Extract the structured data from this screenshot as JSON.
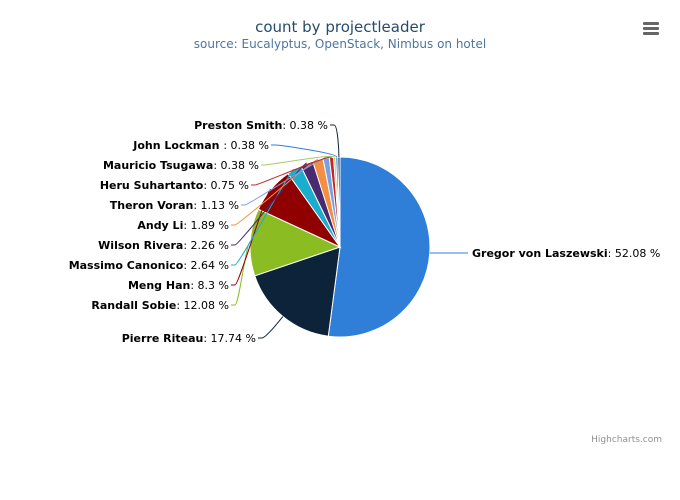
{
  "chart_data": {
    "type": "pie",
    "title": "count by projectleader",
    "subtitle": "source: Eucalyptus, OpenStack, Nimbus on hotel",
    "credit": "Highcharts.com",
    "slices": [
      {
        "name": "Gregor von Laszewski",
        "value": 52.08,
        "label": "52.08 %",
        "color": "#2f7ed8"
      },
      {
        "name": "Pierre Riteau",
        "value": 17.74,
        "label": "17.74 %",
        "color": "#0d233a"
      },
      {
        "name": "Randall Sobie",
        "value": 12.08,
        "label": "12.08 %",
        "color": "#8bbc21"
      },
      {
        "name": "Meng Han",
        "value": 8.3,
        "label": "8.3 %",
        "color": "#910000"
      },
      {
        "name": "Massimo Canonico",
        "value": 2.64,
        "label": "2.64 %",
        "color": "#1aadce"
      },
      {
        "name": "Wilson Rivera",
        "value": 2.26,
        "label": "2.26 %",
        "color": "#492970"
      },
      {
        "name": "Andy Li",
        "value": 1.89,
        "label": "1.89 %",
        "color": "#f28f43"
      },
      {
        "name": "Theron Voran",
        "value": 1.13,
        "label": "1.13 %",
        "color": "#77a1e5"
      },
      {
        "name": "Heru Suhartanto",
        "value": 0.75,
        "label": "0.75 %",
        "color": "#c42525"
      },
      {
        "name": "Mauricio Tsugawa",
        "value": 0.38,
        "label": "0.38 %",
        "color": "#a6c96a"
      },
      {
        "name": "John Lockman ",
        "value": 0.38,
        "label": "0.38 %",
        "color": "#2f7ed8"
      },
      {
        "name": "Preston Smith",
        "value": 0.38,
        "label": "0.38 %",
        "color": "#0d233a"
      }
    ]
  }
}
